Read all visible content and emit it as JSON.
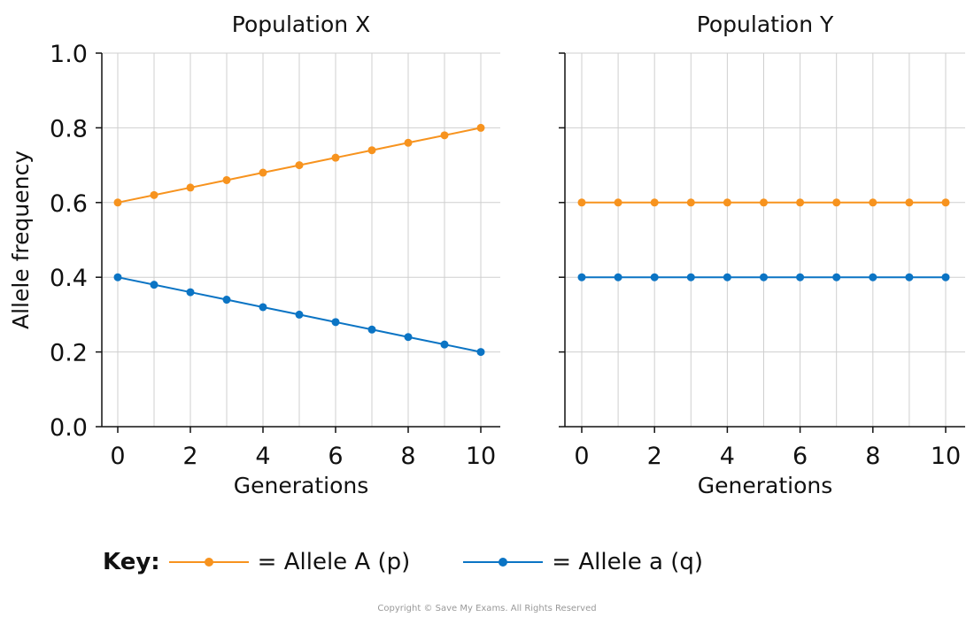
{
  "chart_data": [
    {
      "type": "line",
      "title": "Population X",
      "xlabel": "Generations",
      "ylabel": "Allele frequency",
      "xlim": [
        0,
        10
      ],
      "ylim": [
        0,
        1.0
      ],
      "xticks": [
        "0",
        "2",
        "4",
        "6",
        "8",
        "10"
      ],
      "yticks": [
        "0.0",
        "0.2",
        "0.4",
        "0.6",
        "0.8",
        "1.0"
      ],
      "grid": true,
      "x": [
        0,
        1,
        2,
        3,
        4,
        5,
        6,
        7,
        8,
        9,
        10
      ],
      "series": [
        {
          "name": "Allele A (p)",
          "color": "#f7931e",
          "values": [
            0.6,
            0.62,
            0.64,
            0.66,
            0.68,
            0.7,
            0.72,
            0.74,
            0.76,
            0.78,
            0.8
          ]
        },
        {
          "name": "Allele a (q)",
          "color": "#0b74c4",
          "values": [
            0.4,
            0.38,
            0.36,
            0.34,
            0.32,
            0.3,
            0.28,
            0.26,
            0.24,
            0.22,
            0.2
          ]
        }
      ]
    },
    {
      "type": "line",
      "title": "Population Y",
      "xlabel": "Generations",
      "ylabel": "",
      "xlim": [
        0,
        10
      ],
      "ylim": [
        0,
        1.0
      ],
      "xticks": [
        "0",
        "2",
        "4",
        "6",
        "8",
        "10"
      ],
      "yticks": [],
      "grid": true,
      "x": [
        0,
        1,
        2,
        3,
        4,
        5,
        6,
        7,
        8,
        9,
        10
      ],
      "series": [
        {
          "name": "Allele A (p)",
          "color": "#f7931e",
          "values": [
            0.6,
            0.6,
            0.6,
            0.6,
            0.6,
            0.6,
            0.6,
            0.6,
            0.6,
            0.6,
            0.6
          ]
        },
        {
          "name": "Allele a (q)",
          "color": "#0b74c4",
          "values": [
            0.4,
            0.4,
            0.4,
            0.4,
            0.4,
            0.4,
            0.4,
            0.4,
            0.4,
            0.4,
            0.4
          ]
        }
      ]
    }
  ],
  "key": {
    "title": "Key:",
    "items": [
      {
        "label": "= Allele A (p)",
        "color": "#f7931e"
      },
      {
        "label": "= Allele a (q)",
        "color": "#0b74c4"
      }
    ]
  },
  "copyright": "Copyright © Save My Exams. All Rights Reserved"
}
